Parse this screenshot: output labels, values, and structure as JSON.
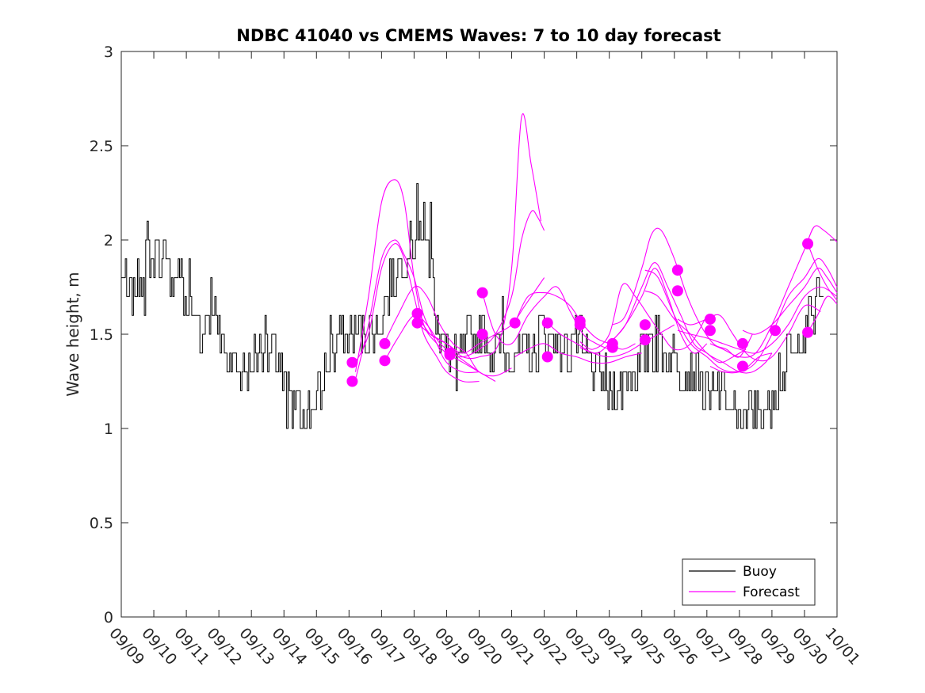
{
  "chart_data": {
    "type": "line",
    "title": "NDBC 41040 vs CMEMS Waves: 7 to 10 day forecast",
    "xlabel": "",
    "ylabel": "Wave height, m",
    "xlim": [
      0,
      22
    ],
    "ylim": [
      0,
      3
    ],
    "yticks": [
      0,
      0.5,
      1,
      1.5,
      2,
      2.5,
      3
    ],
    "ytick_labels": [
      "0",
      "0.5",
      "1",
      "1.5",
      "2",
      "2.5",
      "3"
    ],
    "xticks": [
      0,
      1,
      2,
      3,
      4,
      5,
      6,
      7,
      8,
      9,
      10,
      11,
      12,
      13,
      14,
      15,
      16,
      17,
      18,
      19,
      20,
      21,
      22
    ],
    "xtick_labels": [
      "09/09",
      "09/10",
      "09/11",
      "09/12",
      "09/13",
      "09/14",
      "09/15",
      "09/16",
      "09/17",
      "09/18",
      "09/19",
      "09/20",
      "09/21",
      "09/22",
      "09/23",
      "09/24",
      "09/25",
      "09/26",
      "09/27",
      "09/28",
      "09/29",
      "09/30",
      "10/01"
    ],
    "legend": {
      "location": "bottom-right",
      "entries": [
        {
          "label": "Buoy",
          "color": "#000000"
        },
        {
          "label": "Forecast",
          "color": "#ff00ff"
        }
      ]
    },
    "colors": {
      "buoy": "#000000",
      "forecast": "#ff00ff",
      "axis": "#262626"
    },
    "buoy": {
      "name": "Buoy",
      "anchors": [
        [
          0.0,
          1.8
        ],
        [
          0.3,
          1.7
        ],
        [
          0.5,
          1.8
        ],
        [
          0.8,
          1.9
        ],
        [
          1.2,
          1.9
        ],
        [
          1.5,
          1.8
        ],
        [
          1.8,
          1.85
        ],
        [
          2.0,
          1.6
        ],
        [
          2.3,
          1.6
        ],
        [
          2.5,
          1.5
        ],
        [
          2.8,
          1.7
        ],
        [
          3.0,
          1.5
        ],
        [
          3.3,
          1.4
        ],
        [
          3.6,
          1.3
        ],
        [
          4.0,
          1.35
        ],
        [
          4.5,
          1.35
        ],
        [
          4.8,
          1.4
        ],
        [
          5.0,
          1.2
        ],
        [
          5.3,
          1.15
        ],
        [
          5.6,
          1.12
        ],
        [
          6.0,
          1.15
        ],
        [
          6.3,
          1.3
        ],
        [
          6.6,
          1.45
        ],
        [
          7.0,
          1.5
        ],
        [
          7.4,
          1.45
        ],
        [
          7.8,
          1.5
        ],
        [
          8.0,
          1.6
        ],
        [
          8.3,
          1.8
        ],
        [
          8.6,
          1.9
        ],
        [
          9.0,
          2.0
        ],
        [
          9.3,
          2.0
        ],
        [
          9.6,
          1.7
        ],
        [
          9.9,
          1.45
        ],
        [
          10.2,
          1.35
        ],
        [
          10.6,
          1.45
        ],
        [
          11.0,
          1.5
        ],
        [
          11.5,
          1.4
        ],
        [
          12.0,
          1.45
        ],
        [
          12.4,
          1.4
        ],
        [
          12.8,
          1.45
        ],
        [
          13.2,
          1.5
        ],
        [
          13.6,
          1.4
        ],
        [
          14.0,
          1.5
        ],
        [
          14.4,
          1.35
        ],
        [
          14.8,
          1.3
        ],
        [
          15.0,
          1.2
        ],
        [
          15.4,
          1.25
        ],
        [
          15.8,
          1.3
        ],
        [
          16.2,
          1.45
        ],
        [
          16.6,
          1.45
        ],
        [
          17.0,
          1.4
        ],
        [
          17.3,
          1.3
        ],
        [
          17.8,
          1.25
        ],
        [
          18.3,
          1.2
        ],
        [
          18.6,
          1.15
        ],
        [
          19.0,
          1.12
        ],
        [
          19.3,
          1.05
        ],
        [
          19.6,
          1.1
        ],
        [
          20.0,
          1.15
        ],
        [
          20.3,
          1.3
        ],
        [
          20.6,
          1.4
        ],
        [
          21.0,
          1.5
        ],
        [
          21.4,
          1.7
        ],
        [
          21.6,
          1.75
        ]
      ],
      "spikes": [
        [
          0.7,
          1.55
        ],
        [
          0.75,
          2.0
        ],
        [
          0.8,
          2.1
        ],
        [
          1.1,
          2.0
        ],
        [
          2.1,
          1.9
        ],
        [
          4.4,
          1.6
        ],
        [
          5.1,
          1.0
        ],
        [
          5.25,
          1.0
        ],
        [
          5.9,
          1.1
        ],
        [
          6.4,
          1.6
        ],
        [
          9.1,
          2.3
        ],
        [
          9.3,
          2.2
        ],
        [
          9.5,
          2.2
        ],
        [
          10.3,
          1.2
        ],
        [
          11.7,
          1.7
        ],
        [
          14.1,
          1.6
        ],
        [
          15.1,
          1.1
        ],
        [
          16.4,
          1.6
        ],
        [
          18.1,
          1.1
        ],
        [
          18.9,
          1.0
        ],
        [
          19.1,
          1.0
        ],
        [
          19.4,
          1.0
        ],
        [
          19.5,
          1.0
        ],
        [
          21.2,
          1.6
        ]
      ]
    },
    "forecast_lines": [
      [
        [
          7.2,
          1.3
        ],
        [
          7.6,
          1.7
        ],
        [
          8.0,
          2.2
        ],
        [
          8.4,
          2.32
        ],
        [
          8.7,
          2.2
        ],
        [
          9.0,
          1.8
        ],
        [
          9.3,
          1.55
        ],
        [
          9.7,
          1.45
        ],
        [
          10.0,
          1.4
        ],
        [
          10.5,
          1.35
        ],
        [
          11.0,
          1.3
        ],
        [
          11.5,
          1.25
        ]
      ],
      [
        [
          7.2,
          1.26
        ],
        [
          7.6,
          1.55
        ],
        [
          8.0,
          1.9
        ],
        [
          8.4,
          2.0
        ],
        [
          8.7,
          1.92
        ],
        [
          9.0,
          1.8
        ],
        [
          9.3,
          1.6
        ],
        [
          9.7,
          1.45
        ],
        [
          10.0,
          1.35
        ],
        [
          10.5,
          1.3
        ],
        [
          11.0,
          1.3
        ]
      ],
      [
        [
          7.2,
          1.35
        ],
        [
          7.6,
          1.5
        ],
        [
          8.0,
          1.85
        ],
        [
          8.4,
          1.98
        ],
        [
          8.7,
          1.9
        ],
        [
          9.0,
          1.7
        ],
        [
          9.3,
          1.5
        ],
        [
          9.7,
          1.38
        ],
        [
          10.0,
          1.3
        ],
        [
          10.5,
          1.25
        ],
        [
          11.0,
          1.25
        ]
      ],
      [
        [
          8.1,
          1.46
        ],
        [
          8.5,
          1.6
        ],
        [
          9.0,
          1.75
        ],
        [
          9.4,
          1.7
        ],
        [
          9.8,
          1.55
        ],
        [
          10.2,
          1.45
        ],
        [
          10.6,
          1.4
        ],
        [
          11.0,
          1.3
        ],
        [
          11.5,
          1.28
        ],
        [
          12.0,
          1.32
        ]
      ],
      [
        [
          8.1,
          1.36
        ],
        [
          8.5,
          1.48
        ],
        [
          9.0,
          1.6
        ],
        [
          9.4,
          1.55
        ],
        [
          9.8,
          1.45
        ],
        [
          10.2,
          1.4
        ],
        [
          10.6,
          1.35
        ],
        [
          11.0,
          1.3
        ]
      ],
      [
        [
          9.1,
          1.6
        ],
        [
          9.5,
          1.5
        ],
        [
          10.0,
          1.45
        ],
        [
          10.5,
          1.4
        ],
        [
          11.0,
          1.45
        ],
        [
          11.5,
          1.5
        ],
        [
          12.0,
          1.55
        ],
        [
          12.4,
          1.65
        ],
        [
          12.8,
          1.75
        ],
        [
          13.0,
          1.8
        ]
      ],
      [
        [
          9.1,
          1.56
        ],
        [
          9.5,
          1.5
        ],
        [
          10.0,
          1.45
        ],
        [
          10.5,
          1.38
        ],
        [
          11.0,
          1.38
        ],
        [
          11.6,
          1.45
        ],
        [
          12.0,
          1.85
        ],
        [
          12.3,
          2.65
        ],
        [
          12.6,
          2.4
        ],
        [
          12.9,
          2.1
        ]
      ],
      [
        [
          10.1,
          1.4
        ],
        [
          10.5,
          1.38
        ],
        [
          11.0,
          1.42
        ],
        [
          11.5,
          1.5
        ],
        [
          12.0,
          1.7
        ],
        [
          12.3,
          2.0
        ],
        [
          12.6,
          2.15
        ],
        [
          12.8,
          2.12
        ],
        [
          13.0,
          2.05
        ]
      ],
      [
        [
          11.1,
          1.72
        ],
        [
          11.5,
          1.5
        ],
        [
          12.0,
          1.45
        ],
        [
          12.5,
          1.6
        ],
        [
          13.0,
          1.7
        ],
        [
          13.4,
          1.75
        ],
        [
          13.8,
          1.62
        ],
        [
          14.2,
          1.5
        ],
        [
          14.6,
          1.45
        ],
        [
          15.0,
          1.42
        ]
      ],
      [
        [
          12.1,
          1.56
        ],
        [
          12.5,
          1.7
        ],
        [
          13.0,
          1.72
        ],
        [
          13.4,
          1.7
        ],
        [
          13.8,
          1.65
        ],
        [
          14.2,
          1.55
        ],
        [
          14.6,
          1.48
        ],
        [
          15.0,
          1.45
        ],
        [
          15.4,
          1.42
        ],
        [
          15.8,
          1.45
        ]
      ],
      [
        [
          12.1,
          1.38
        ],
        [
          12.5,
          1.42
        ],
        [
          13.0,
          1.45
        ],
        [
          13.5,
          1.4
        ],
        [
          14.0,
          1.38
        ],
        [
          14.5,
          1.35
        ],
        [
          15.0,
          1.35
        ],
        [
          15.5,
          1.38
        ],
        [
          16.0,
          1.4
        ]
      ],
      [
        [
          13.1,
          1.56
        ],
        [
          13.5,
          1.5
        ],
        [
          14.0,
          1.45
        ],
        [
          14.5,
          1.4
        ],
        [
          15.0,
          1.38
        ],
        [
          15.5,
          1.4
        ],
        [
          16.0,
          1.45
        ],
        [
          16.5,
          1.5
        ],
        [
          17.0,
          1.55
        ]
      ],
      [
        [
          14.1,
          1.46
        ],
        [
          14.5,
          1.42
        ],
        [
          15.0,
          1.5
        ],
        [
          15.4,
          1.76
        ],
        [
          15.8,
          1.7
        ],
        [
          16.2,
          1.6
        ],
        [
          16.6,
          1.5
        ],
        [
          17.0,
          1.42
        ],
        [
          17.5,
          1.45
        ],
        [
          18.0,
          1.6
        ]
      ],
      [
        [
          14.1,
          1.43
        ],
        [
          14.6,
          1.4
        ],
        [
          15.0,
          1.45
        ],
        [
          15.5,
          1.55
        ],
        [
          16.0,
          1.7
        ],
        [
          16.4,
          1.85
        ],
        [
          16.8,
          1.7
        ],
        [
          17.2,
          1.5
        ],
        [
          17.6,
          1.4
        ],
        [
          18.0,
          1.45
        ]
      ],
      [
        [
          15.1,
          1.55
        ],
        [
          15.5,
          1.6
        ],
        [
          16.0,
          1.85
        ],
        [
          16.3,
          2.03
        ],
        [
          16.6,
          2.05
        ],
        [
          17.0,
          1.9
        ],
        [
          17.4,
          1.7
        ],
        [
          17.8,
          1.55
        ],
        [
          18.2,
          1.45
        ],
        [
          18.6,
          1.42
        ],
        [
          19.0,
          1.38
        ],
        [
          19.4,
          1.5
        ]
      ],
      [
        [
          15.1,
          1.47
        ],
        [
          15.5,
          1.55
        ],
        [
          16.0,
          1.75
        ],
        [
          16.4,
          1.88
        ],
        [
          16.8,
          1.75
        ],
        [
          17.2,
          1.6
        ],
        [
          17.6,
          1.45
        ],
        [
          18.0,
          1.4
        ],
        [
          18.4,
          1.35
        ],
        [
          18.8,
          1.38
        ],
        [
          19.2,
          1.42
        ]
      ],
      [
        [
          16.1,
          1.84
        ],
        [
          16.5,
          1.8
        ],
        [
          17.0,
          1.6
        ],
        [
          17.5,
          1.45
        ],
        [
          18.0,
          1.38
        ],
        [
          18.4,
          1.32
        ],
        [
          18.8,
          1.3
        ],
        [
          19.2,
          1.32
        ],
        [
          19.6,
          1.38
        ],
        [
          20.0,
          1.4
        ]
      ],
      [
        [
          16.1,
          1.73
        ],
        [
          16.5,
          1.7
        ],
        [
          17.0,
          1.58
        ],
        [
          17.5,
          1.5
        ],
        [
          18.0,
          1.4
        ],
        [
          18.5,
          1.35
        ],
        [
          19.0,
          1.3
        ],
        [
          19.4,
          1.3
        ],
        [
          19.8,
          1.35
        ],
        [
          20.0,
          1.4
        ]
      ],
      [
        [
          17.1,
          1.58
        ],
        [
          17.5,
          1.55
        ],
        [
          18.0,
          1.58
        ],
        [
          18.4,
          1.6
        ],
        [
          18.8,
          1.5
        ],
        [
          19.2,
          1.4
        ],
        [
          19.6,
          1.36
        ],
        [
          20.0,
          1.38
        ],
        [
          20.5,
          1.5
        ],
        [
          21.0,
          1.65
        ],
        [
          21.5,
          1.62
        ]
      ],
      [
        [
          17.1,
          1.52
        ],
        [
          17.5,
          1.5
        ],
        [
          18.0,
          1.48
        ],
        [
          18.5,
          1.45
        ],
        [
          19.0,
          1.42
        ],
        [
          19.5,
          1.4
        ],
        [
          20.0,
          1.45
        ],
        [
          20.5,
          1.55
        ],
        [
          21.0,
          1.7
        ],
        [
          21.5,
          1.75
        ],
        [
          22.0,
          1.7
        ]
      ],
      [
        [
          18.1,
          1.45
        ],
        [
          18.5,
          1.42
        ],
        [
          19.0,
          1.38
        ],
        [
          19.5,
          1.4
        ],
        [
          20.0,
          1.55
        ],
        [
          20.5,
          1.75
        ],
        [
          21.0,
          1.95
        ],
        [
          21.3,
          2.07
        ],
        [
          21.6,
          2.05
        ],
        [
          22.0,
          1.99
        ]
      ],
      [
        [
          18.1,
          1.33
        ],
        [
          18.5,
          1.3
        ],
        [
          19.0,
          1.3
        ],
        [
          19.5,
          1.35
        ],
        [
          20.0,
          1.5
        ],
        [
          20.5,
          1.7
        ],
        [
          21.0,
          1.8
        ],
        [
          21.4,
          1.9
        ],
        [
          21.7,
          1.85
        ],
        [
          22.0,
          1.75
        ]
      ],
      [
        [
          19.1,
          1.52
        ],
        [
          19.5,
          1.5
        ],
        [
          20.0,
          1.55
        ],
        [
          20.5,
          1.65
        ],
        [
          21.0,
          1.75
        ],
        [
          21.4,
          1.85
        ],
        [
          21.7,
          1.8
        ],
        [
          22.0,
          1.72
        ]
      ],
      [
        [
          21.1,
          1.98
        ],
        [
          21.4,
          1.85
        ],
        [
          21.7,
          1.75
        ],
        [
          22.0,
          1.68
        ]
      ],
      [
        [
          21.1,
          1.51
        ],
        [
          21.4,
          1.6
        ],
        [
          21.7,
          1.7
        ],
        [
          22.0,
          1.66
        ]
      ]
    ],
    "forecast_points": [
      [
        7.1,
        1.35
      ],
      [
        7.1,
        1.25
      ],
      [
        8.1,
        1.45
      ],
      [
        8.1,
        1.36
      ],
      [
        9.1,
        1.61
      ],
      [
        9.1,
        1.56
      ],
      [
        10.1,
        1.4
      ],
      [
        10.1,
        1.39
      ],
      [
        11.1,
        1.72
      ],
      [
        11.1,
        1.5
      ],
      [
        12.1,
        1.56
      ],
      [
        13.1,
        1.56
      ],
      [
        13.1,
        1.38
      ],
      [
        14.1,
        1.57
      ],
      [
        14.1,
        1.55
      ],
      [
        15.1,
        1.45
      ],
      [
        15.1,
        1.43
      ],
      [
        16.1,
        1.55
      ],
      [
        16.1,
        1.47
      ],
      [
        17.1,
        1.84
      ],
      [
        17.1,
        1.73
      ],
      [
        18.1,
        1.58
      ],
      [
        18.1,
        1.52
      ],
      [
        19.1,
        1.45
      ],
      [
        19.1,
        1.33
      ],
      [
        20.1,
        1.52
      ],
      [
        21.1,
        1.98
      ],
      [
        21.1,
        1.51
      ]
    ]
  }
}
